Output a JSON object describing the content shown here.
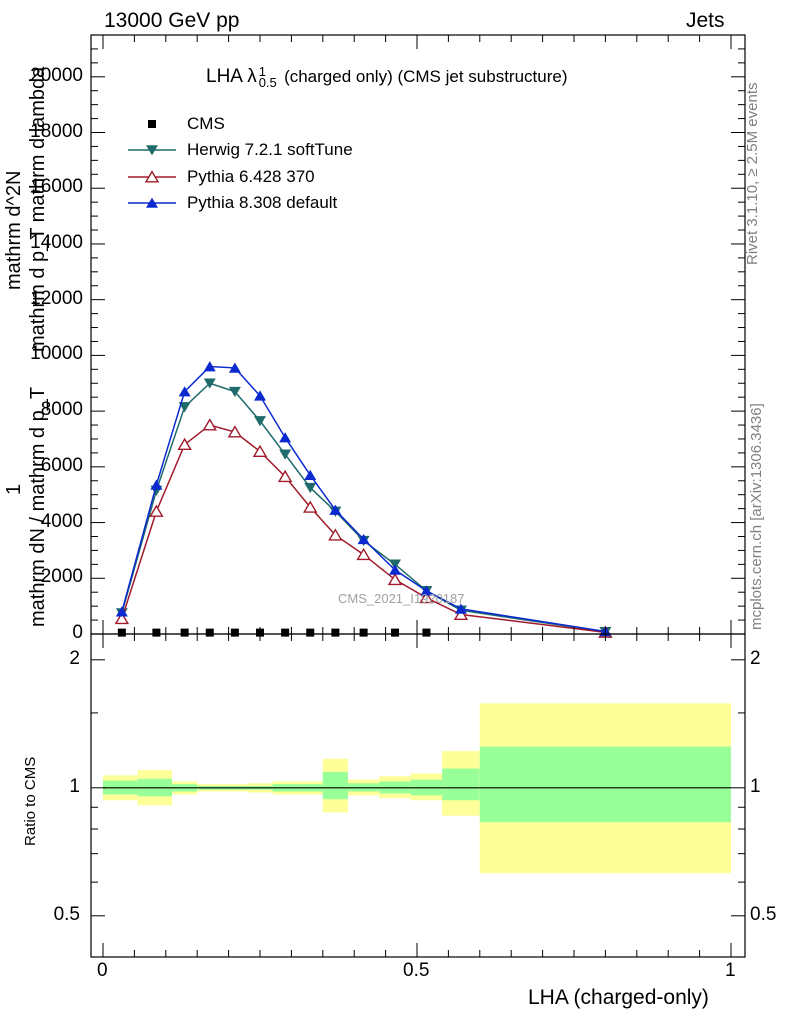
{
  "header": {
    "left": "13000 GeV pp",
    "right": "Jets"
  },
  "side": {
    "rivet": "Rivet 3.1.10, ≥ 2.5M events",
    "mcplots": "mcplots.cern.ch [arXiv:1306.3436]"
  },
  "ylabel_stack": {
    "fraction_top_a": "mathrm d^2N",
    "fraction_top_b": "mathrm d p_T mathrm d lambda",
    "fraction_one": "1",
    "fraction_bottom": "mathrm dN / mathrm d p_T"
  },
  "colors": {
    "cms": "#000000",
    "herwig": "#1f6a6a",
    "pythia6": "#a01a2a",
    "pythia8": "#0a2ad0",
    "band_outer": "#ffff99",
    "band_inner": "#99ff99",
    "watermark": "#a0a0a0"
  },
  "chart_data": [
    {
      "type": "line",
      "title": "LHA λ",
      "title_sup": "1",
      "title_sub": "0.5",
      "title_rest": "(charged only) (CMS jet substructure)",
      "watermark": "CMS_2021_I1920187",
      "xlim": [
        0,
        1
      ],
      "ylim": [
        0,
        21500
      ],
      "y_ticks": [
        0,
        2000,
        4000,
        6000,
        8000,
        10000,
        12000,
        14000,
        16000,
        18000,
        20000
      ],
      "y_tick_labels": [
        "0",
        "2000",
        "4000",
        "6000",
        "8000",
        "10000",
        "12000",
        "14000",
        "16000",
        "18000",
        "20000"
      ],
      "legend_position": "top-left",
      "series": [
        {
          "name": "CMS",
          "marker": "square",
          "x": [
            0.03,
            0.085,
            0.13,
            0.17,
            0.21,
            0.25,
            0.29,
            0.33,
            0.37,
            0.415,
            0.465,
            0.515
          ],
          "values": [
            50,
            50,
            50,
            50,
            50,
            50,
            50,
            50,
            50,
            50,
            50,
            50
          ]
        },
        {
          "name": "Herwig 7.2.1 softTune",
          "marker": "triangle-down",
          "x": [
            0.03,
            0.085,
            0.13,
            0.17,
            0.21,
            0.25,
            0.29,
            0.33,
            0.37,
            0.415,
            0.465,
            0.515,
            0.57,
            0.8
          ],
          "values": [
            750,
            5150,
            8150,
            9000,
            8700,
            7650,
            6450,
            5250,
            4400,
            3350,
            2500,
            1550,
            850,
            80
          ]
        },
        {
          "name": "Pythia 6.428 370",
          "marker": "triangle-up-open",
          "x": [
            0.03,
            0.085,
            0.13,
            0.17,
            0.21,
            0.25,
            0.29,
            0.33,
            0.37,
            0.415,
            0.465,
            0.515,
            0.57,
            0.8
          ],
          "values": [
            550,
            4400,
            6800,
            7500,
            7250,
            6550,
            5650,
            4550,
            3550,
            2850,
            1950,
            1300,
            700,
            60
          ]
        },
        {
          "name": "Pythia 8.308 default",
          "marker": "triangle-up",
          "x": [
            0.03,
            0.085,
            0.13,
            0.17,
            0.21,
            0.25,
            0.29,
            0.33,
            0.37,
            0.415,
            0.465,
            0.515,
            0.57,
            0.8
          ],
          "values": [
            800,
            5350,
            8700,
            9600,
            9550,
            8550,
            7050,
            5700,
            4450,
            3400,
            2300,
            1550,
            900,
            90
          ]
        }
      ]
    },
    {
      "type": "area",
      "ylabel": "Ratio to CMS",
      "xlabel": "LHA (charged-only)",
      "xlim": [
        0,
        1
      ],
      "ylim": [
        0.4,
        2.3
      ],
      "scale": "log",
      "y_ticks": [
        0.5,
        1,
        2
      ],
      "y_tick_labels": [
        "0.5",
        "1",
        "2"
      ],
      "x_ticks": [
        0,
        0.5,
        1
      ],
      "x_tick_labels": [
        "0",
        "0.5",
        "1"
      ],
      "reference_line": 1,
      "bins": [
        {
          "x0": 0.0,
          "x1": 0.055,
          "outer": [
            0.935,
            1.07
          ],
          "inner": [
            0.965,
            1.04
          ]
        },
        {
          "x0": 0.055,
          "x1": 0.11,
          "outer": [
            0.91,
            1.1
          ],
          "inner": [
            0.955,
            1.05
          ]
        },
        {
          "x0": 0.11,
          "x1": 0.15,
          "outer": [
            0.965,
            1.035
          ],
          "inner": [
            0.98,
            1.02
          ]
        },
        {
          "x0": 0.15,
          "x1": 0.19,
          "outer": [
            0.98,
            1.02
          ],
          "inner": [
            0.99,
            1.01
          ]
        },
        {
          "x0": 0.19,
          "x1": 0.23,
          "outer": [
            0.98,
            1.02
          ],
          "inner": [
            0.99,
            1.01
          ]
        },
        {
          "x0": 0.23,
          "x1": 0.27,
          "outer": [
            0.975,
            1.025
          ],
          "inner": [
            0.99,
            1.01
          ]
        },
        {
          "x0": 0.27,
          "x1": 0.31,
          "outer": [
            0.965,
            1.035
          ],
          "inner": [
            0.98,
            1.02
          ]
        },
        {
          "x0": 0.31,
          "x1": 0.35,
          "outer": [
            0.965,
            1.035
          ],
          "inner": [
            0.98,
            1.02
          ]
        },
        {
          "x0": 0.35,
          "x1": 0.39,
          "outer": [
            0.875,
            1.17
          ],
          "inner": [
            0.94,
            1.09
          ]
        },
        {
          "x0": 0.39,
          "x1": 0.44,
          "outer": [
            0.96,
            1.045
          ],
          "inner": [
            0.98,
            1.025
          ]
        },
        {
          "x0": 0.44,
          "x1": 0.49,
          "outer": [
            0.945,
            1.065
          ],
          "inner": [
            0.97,
            1.035
          ]
        },
        {
          "x0": 0.49,
          "x1": 0.54,
          "outer": [
            0.935,
            1.08
          ],
          "inner": [
            0.96,
            1.045
          ]
        },
        {
          "x0": 0.54,
          "x1": 0.6,
          "outer": [
            0.86,
            1.22
          ],
          "inner": [
            0.935,
            1.11
          ]
        },
        {
          "x0": 0.6,
          "x1": 1.0,
          "outer": [
            0.63,
            1.58
          ],
          "inner": [
            0.83,
            1.25
          ]
        }
      ]
    }
  ]
}
